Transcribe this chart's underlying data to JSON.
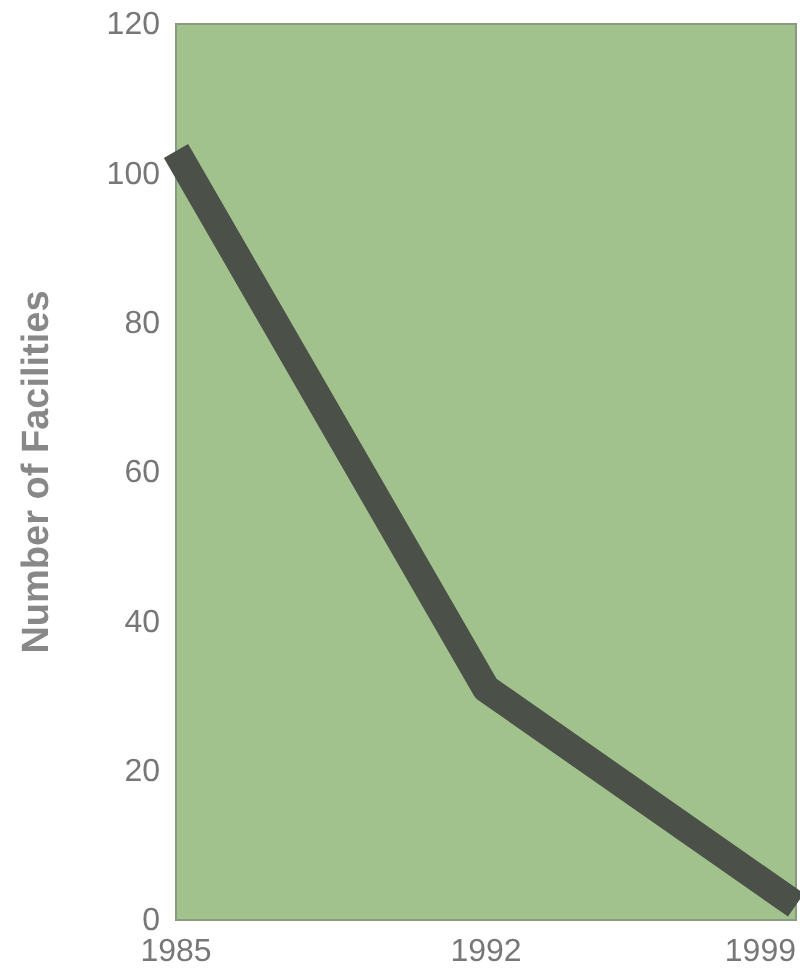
{
  "chart_data": {
    "type": "line",
    "ylabel": "Number of Facilities",
    "x": [
      1985,
      1992,
      1999
    ],
    "series": [
      {
        "color": "#4b5049",
        "values": [
          103,
          31,
          2
        ]
      }
    ],
    "xlim": [
      1985,
      1999
    ],
    "xticks": [
      1985,
      1992,
      1999
    ],
    "ylim": [
      0,
      120
    ],
    "yticks": [
      0,
      20,
      40,
      60,
      80,
      100,
      120
    ],
    "grid": false,
    "marker": "none",
    "line_style": "solid"
  }
}
